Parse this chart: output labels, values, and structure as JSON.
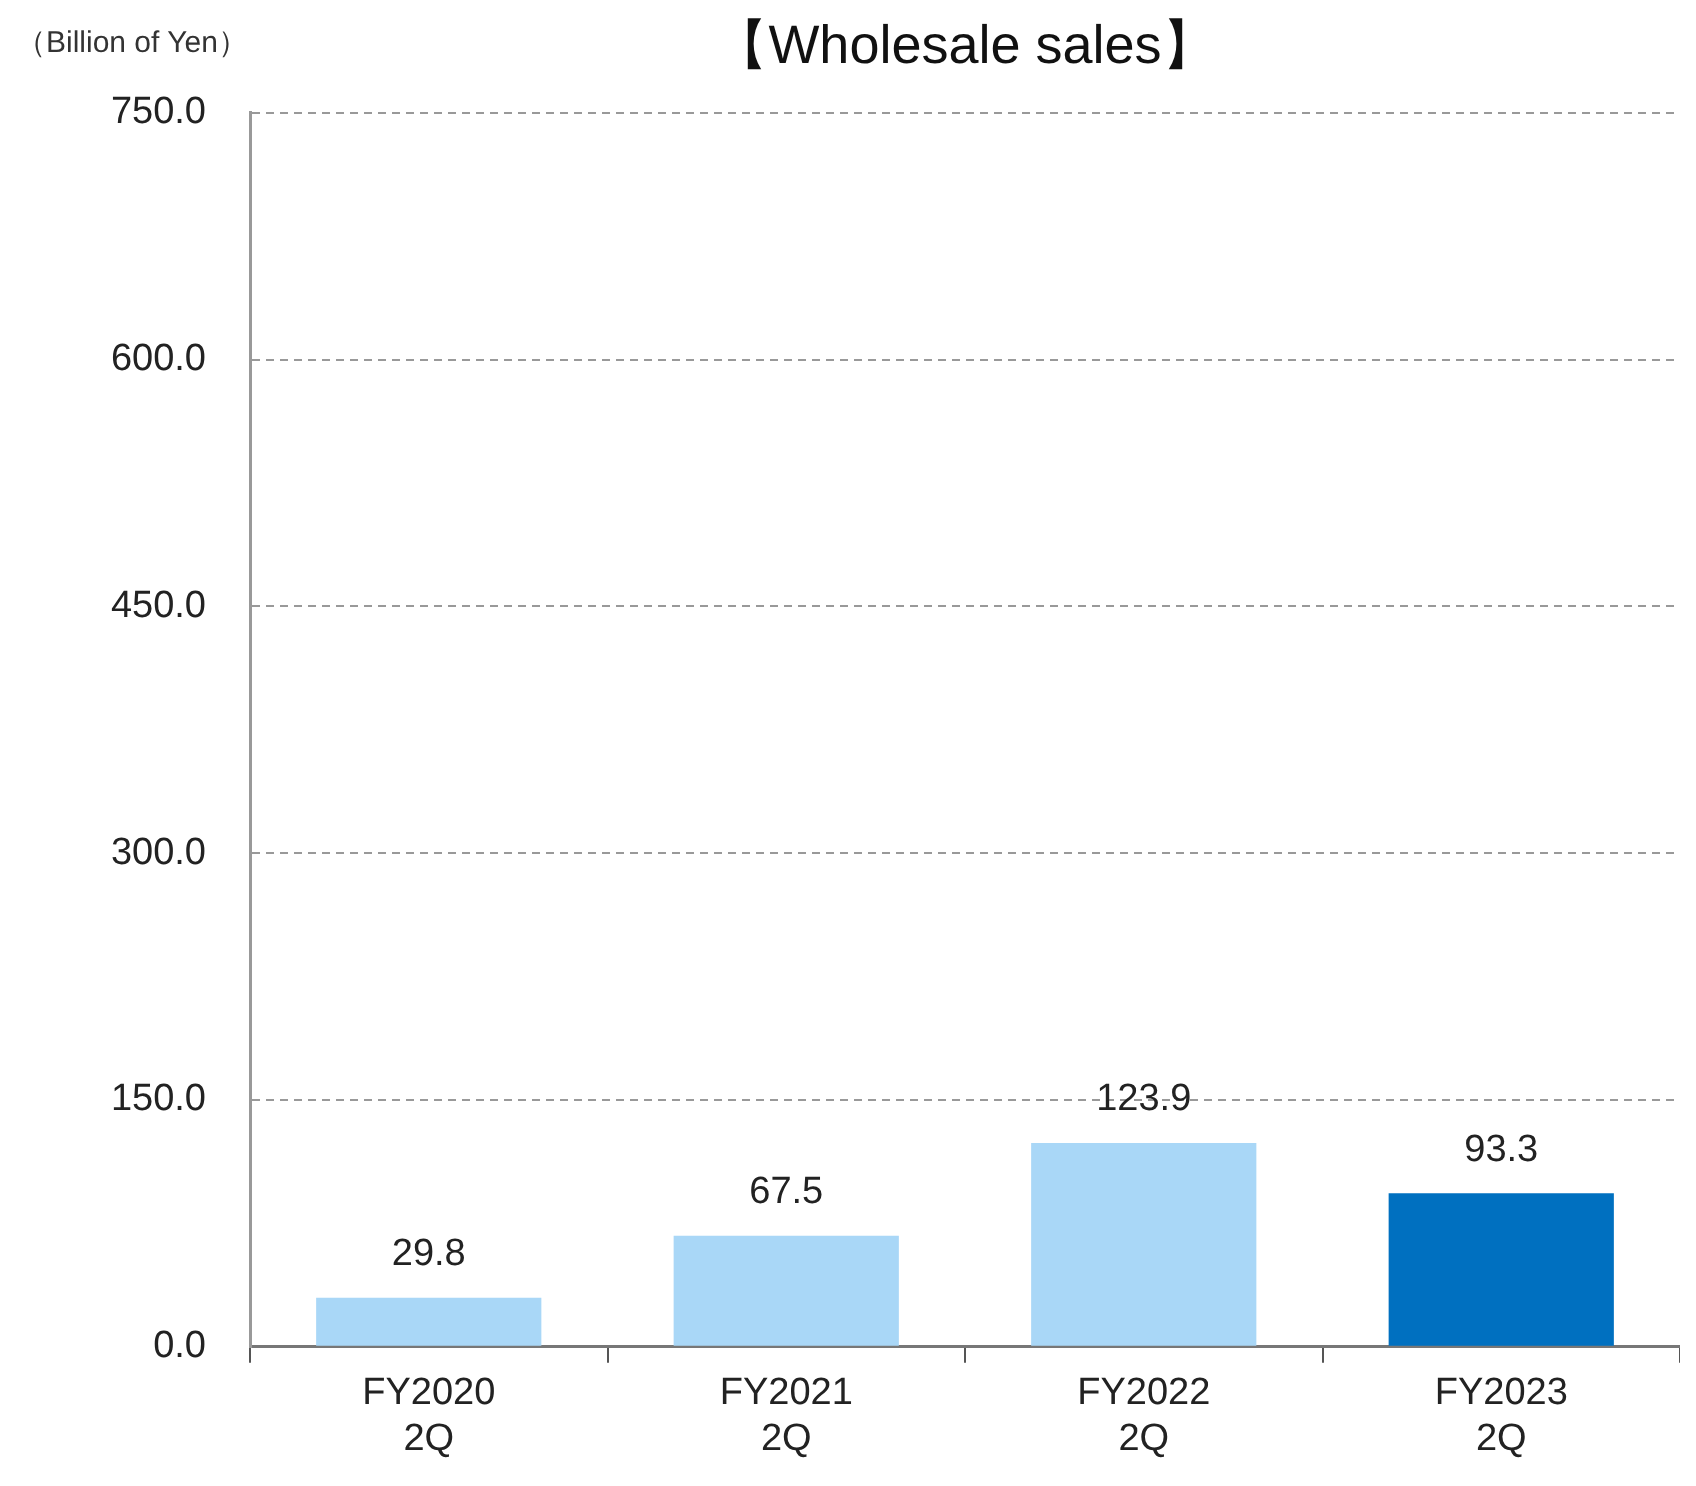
{
  "chart_data": {
    "type": "bar",
    "title": "【Wholesale sales】",
    "ylabel": "（Billion of Yen）",
    "categories": [
      "FY2020\n2Q",
      "FY2021\n2Q",
      "FY2022\n2Q",
      "FY2023\n2Q"
    ],
    "values": [
      29.8,
      67.5,
      123.9,
      93.3
    ],
    "colors": [
      "#a9d7f7",
      "#a9d7f7",
      "#a9d7f7",
      "#0070c0"
    ],
    "ylim": [
      0,
      750
    ],
    "yticks": [
      {
        "value": 0,
        "label": "0.0"
      },
      {
        "value": 150,
        "label": "150.0"
      },
      {
        "value": 300,
        "label": "300.0"
      },
      {
        "value": 450,
        "label": "450.0"
      },
      {
        "value": 600,
        "label": "600.0"
      },
      {
        "value": 750,
        "label": "750.0"
      }
    ],
    "grid": "y",
    "legend": false,
    "data_labels": true
  }
}
